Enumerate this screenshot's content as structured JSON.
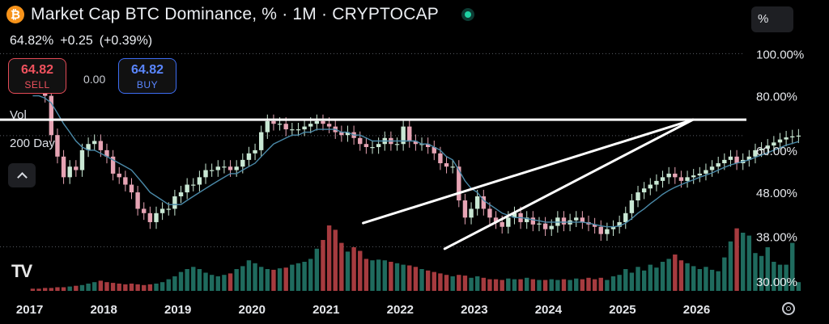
{
  "header": {
    "title": "Market Cap BTC Dominance, % · 1M · CRYPTOCAP",
    "coin_symbol": "₿",
    "last_value": "64.82%",
    "change": "+0.25",
    "change_pct": "(+0.39%)"
  },
  "order": {
    "sell_price": "64.82",
    "sell_label": "SELL",
    "buy_price": "64.82",
    "buy_label": "BUY",
    "spread": "0.00"
  },
  "indicators": {
    "vol_label": "Vol",
    "ma_label": "200 Day"
  },
  "scale_button": "%",
  "logo": "TV",
  "colors": {
    "up": "#c9e8d4",
    "down": "#e6a4b4",
    "vol_up": "#1f6b5e",
    "vol_down": "#a63b3f",
    "ma": "#4a89a8"
  },
  "icons": {
    "collapse": "chevron-up-icon",
    "settings": "gear-icon",
    "live": "live-dot-icon",
    "coin": "bitcoin-icon"
  },
  "chart_data": {
    "type": "candlestick",
    "interval": "1M",
    "y_scale": "log",
    "y_ticks": [
      "100.00%",
      "80.00%",
      "60.00%",
      "48.00%",
      "38.00%",
      "30.00%"
    ],
    "y_tick_values": [
      100,
      80,
      60,
      48,
      38,
      30
    ],
    "x_ticks": [
      "2017",
      "2018",
      "2019",
      "2020",
      "2021",
      "2022",
      "2023",
      "2024",
      "2025",
      "2026"
    ],
    "x_tick_values": [
      2017,
      2018,
      2019,
      2020,
      2021,
      2022,
      2023,
      2024,
      2025,
      2026
    ],
    "x_range": [
      2016.6,
      2026.65
    ],
    "y_range": [
      28.5,
      105
    ],
    "last_price_line": 64.82,
    "horizontal_resistance": 70.5,
    "wedge_upper": {
      "x": [
        2021.5,
        2025.95
      ],
      "y": [
        40.8,
        70.5
      ]
    },
    "wedge_lower": {
      "x": [
        2022.6,
        2025.95
      ],
      "y": [
        35.6,
        70.5
      ]
    },
    "monthly_close": [
      87,
      85,
      80,
      65,
      58,
      52,
      55,
      54,
      60,
      62,
      63,
      60,
      58,
      53,
      52,
      50,
      48,
      44,
      43,
      41,
      43,
      44,
      44,
      47,
      48,
      50,
      50,
      52,
      54,
      54,
      55,
      55,
      54,
      55,
      57,
      59,
      60,
      66,
      70,
      69,
      69,
      67,
      67,
      67,
      68,
      69,
      70,
      69,
      68,
      66,
      65,
      66,
      64,
      62,
      61,
      61,
      62,
      64,
      62,
      62,
      68,
      63,
      62,
      62,
      61,
      59,
      56,
      55,
      55,
      46,
      42,
      44,
      47,
      44,
      42,
      41,
      40,
      42,
      43,
      41,
      42,
      40.5,
      40.7,
      39.5,
      40.2,
      42,
      40.5,
      41.4,
      42,
      41,
      40.5,
      40,
      38.5,
      39.5,
      40,
      41,
      43,
      46,
      48,
      49,
      50,
      51,
      52,
      53,
      52,
      51,
      52,
      52.5,
      53,
      54,
      55,
      56,
      57,
      58,
      56,
      57,
      58,
      60,
      60.5,
      61.5,
      62.5,
      63.5,
      64.2,
      64.57,
      64.82
    ],
    "start_open": 88,
    "ma_values": [
      80,
      80,
      79,
      77,
      73,
      69,
      66,
      63,
      61,
      60,
      60,
      59,
      58,
      57,
      56,
      55,
      54,
      52,
      50,
      48,
      47,
      46,
      45,
      45,
      45,
      46,
      47,
      48,
      49,
      50,
      51,
      52,
      53,
      53,
      54,
      55,
      56,
      58,
      60,
      62,
      63,
      64,
      65,
      65,
      66,
      66,
      67,
      67,
      67,
      67,
      66,
      66,
      65,
      65,
      64,
      63,
      63,
      63,
      63,
      63,
      63,
      63,
      63,
      62,
      62,
      61,
      60,
      58,
      57,
      54,
      51,
      49,
      48,
      46,
      45,
      44,
      43,
      42.5,
      42,
      42,
      41.8,
      41.5,
      41.3,
      41,
      41,
      41,
      41,
      41,
      41,
      41,
      40.8,
      40.5,
      40.2,
      40,
      40,
      40.2,
      40.8,
      41.8,
      43,
      44,
      45.2,
      46.3,
      47.5,
      48.5,
      49.3,
      50,
      50.7,
      51.3,
      52,
      52.6,
      53.2,
      54,
      54.8,
      55.5,
      56,
      56.5,
      57,
      57.8,
      58.5,
      59.2,
      60,
      60.8,
      61.6,
      62.2,
      62.8
    ],
    "volume_rel": [
      0.03,
      0.03,
      0.04,
      0.04,
      0.05,
      0.05,
      0.06,
      0.07,
      0.08,
      0.1,
      0.12,
      0.14,
      0.12,
      0.11,
      0.1,
      0.09,
      0.1,
      0.09,
      0.08,
      0.09,
      0.1,
      0.12,
      0.16,
      0.2,
      0.26,
      0.3,
      0.33,
      0.3,
      0.25,
      0.22,
      0.2,
      0.22,
      0.24,
      0.3,
      0.34,
      0.42,
      0.38,
      0.33,
      0.3,
      0.29,
      0.31,
      0.32,
      0.36,
      0.38,
      0.4,
      0.44,
      0.58,
      0.7,
      0.9,
      0.84,
      0.66,
      0.54,
      0.6,
      0.55,
      0.44,
      0.42,
      0.43,
      0.42,
      0.4,
      0.38,
      0.36,
      0.35,
      0.33,
      0.3,
      0.28,
      0.26,
      0.24,
      0.22,
      0.2,
      0.22,
      0.21,
      0.18,
      0.2,
      0.18,
      0.16,
      0.16,
      0.15,
      0.17,
      0.16,
      0.16,
      0.18,
      0.16,
      0.15,
      0.15,
      0.16,
      0.15,
      0.16,
      0.15,
      0.17,
      0.16,
      0.18,
      0.16,
      0.18,
      0.15,
      0.2,
      0.22,
      0.3,
      0.25,
      0.33,
      0.28,
      0.36,
      0.32,
      0.4,
      0.44,
      0.5,
      0.42,
      0.38,
      0.34,
      0.3,
      0.33,
      0.29,
      0.27,
      0.46,
      0.68,
      0.86,
      0.8,
      0.76,
      0.52,
      0.48,
      0.6,
      0.4,
      0.36,
      0.36,
      0.66,
      0.12
    ]
  }
}
